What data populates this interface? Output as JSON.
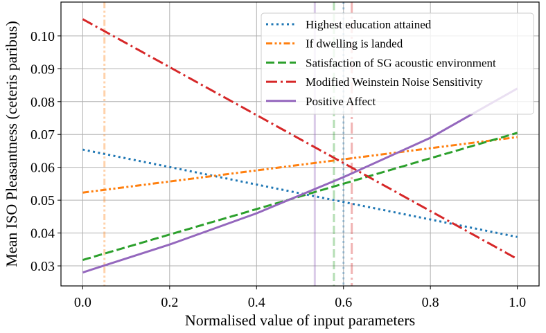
{
  "chart_data": {
    "type": "line",
    "title": "",
    "xlabel": "Normalised value of input parameters",
    "ylabel": "Mean ISO Pleasantness (ceteris paribus)",
    "xlim": [
      -0.05,
      1.05
    ],
    "ylim": [
      0.0239,
      0.1103
    ],
    "grid": true,
    "legend_position": "top-right",
    "x_ticks": [
      "0.0",
      "0.2",
      "0.4",
      "0.6",
      "0.8",
      "1.0"
    ],
    "y_ticks": [
      "0.03",
      "0.04",
      "0.05",
      "0.06",
      "0.07",
      "0.08",
      "0.09",
      "0.10"
    ],
    "series": [
      {
        "name": "Highest education attained",
        "color": "#1f77b4",
        "style": "dotted",
        "x": [
          0.0,
          1.0
        ],
        "y": [
          0.0654,
          0.0388
        ],
        "marker_x": 0.6
      },
      {
        "name": "If dwelling is landed",
        "color": "#ff7f0e",
        "style": "dash-dot-dot",
        "x": [
          0.0,
          1.0
        ],
        "y": [
          0.0523,
          0.0692
        ],
        "marker_x": 0.05
      },
      {
        "name": "Satisfaction of SG acoustic environment",
        "color": "#2ca02c",
        "style": "dashed",
        "x": [
          0.0,
          1.0
        ],
        "y": [
          0.0318,
          0.0705
        ],
        "marker_x": 0.578
      },
      {
        "name": "Modified Weinstein Noise Sensitivity",
        "color": "#d62728",
        "style": "dash-dot",
        "x": [
          0.0,
          1.0
        ],
        "y": [
          0.1051,
          0.0321
        ],
        "marker_x": 0.619
      },
      {
        "name": "Positive Affect",
        "color": "#9467bd",
        "style": "solid",
        "x": [
          0.0,
          0.2,
          0.4,
          0.6,
          0.8,
          1.0
        ],
        "y": [
          0.028,
          0.0365,
          0.046,
          0.057,
          0.069,
          0.084
        ],
        "marker_x": 0.534
      }
    ]
  }
}
